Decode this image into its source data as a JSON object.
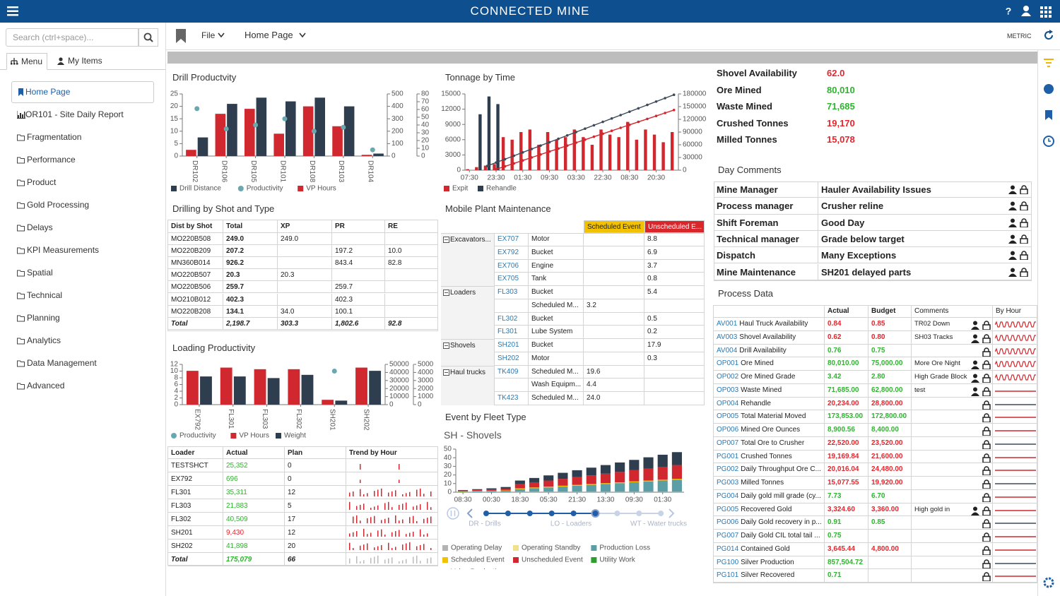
{
  "header": {
    "title": "CONNECTED MINE"
  },
  "toolbar": {
    "file_menu": "File",
    "page_menu": "Home Page",
    "units": "METRIC"
  },
  "sidebar": {
    "search_placeholder": "Search (ctrl+space)...",
    "tabs": [
      "Menu",
      "My Items"
    ],
    "items": [
      "Home Page",
      "OR101 - Site Daily Report",
      "Fragmentation",
      "Performance",
      "Product",
      "Gold Processing",
      "Delays",
      "KPI Measurements",
      "Spatial",
      "Technical",
      "Planning",
      "Analytics",
      "Data Management",
      "Advanced"
    ]
  },
  "drill_productivity": {
    "title": "Drill Productvity",
    "chart": {
      "type": "bar",
      "categories": [
        "DR102",
        "DR106",
        "DR105",
        "DR101",
        "DR108",
        "DR103",
        "DR104"
      ],
      "series": [
        {
          "name": "Drill Distance",
          "type": "bar",
          "color": "#2f3e4e",
          "axis": "y2",
          "values": [
            150,
            420,
            470,
            440,
            470,
            400,
            20
          ]
        },
        {
          "name": "Productivity",
          "type": "scatter",
          "color": "#6aa8b0",
          "axis": "y3",
          "values": [
            61,
            35,
            40,
            48,
            32,
            37,
            8
          ]
        },
        {
          "name": "VP Hours",
          "type": "bar",
          "color": "#d0282e",
          "values": [
            2.5,
            17,
            19,
            9,
            20,
            12,
            0.5
          ]
        }
      ],
      "ylim": [
        0,
        25
      ],
      "yticks": [
        0,
        5,
        10,
        15,
        20,
        25
      ],
      "y2lim": [
        0,
        500
      ],
      "y2ticks": [
        0,
        100,
        200,
        300,
        400,
        500
      ],
      "y3lim": [
        0,
        80
      ],
      "y3ticks": [
        0,
        10,
        20,
        30,
        40,
        50,
        60,
        70,
        80
      ]
    }
  },
  "drilling_by_shot": {
    "title": "Drilling by Shot and Type",
    "columns": [
      "Dist by Shot",
      "Total",
      "XP",
      "PR",
      "RE"
    ],
    "rows": [
      [
        "MO220B508",
        "249.0",
        "249.0",
        null,
        null
      ],
      [
        "MO220B209",
        "207.2",
        null,
        "197.2",
        "10.0"
      ],
      [
        "MN360B014",
        "926.2",
        null,
        "843.4",
        "82.8"
      ],
      [
        "MO220B507",
        "20.3",
        "20.3",
        null,
        null
      ],
      [
        "MO220B506",
        "259.7",
        null,
        "259.7",
        null
      ],
      [
        "MO210B012",
        "402.3",
        null,
        "402.3",
        null
      ],
      [
        "MO220B208",
        "134.1",
        "34.0",
        "100.1",
        null
      ],
      [
        "Total",
        "2,198.7",
        "303.3",
        "1,802.6",
        "92.8"
      ]
    ]
  },
  "loading_productivity": {
    "title": "Loading Productivity",
    "chart": {
      "type": "bar",
      "categories": [
        "EX792",
        "FL301",
        "FL303",
        "FL302",
        "SH201",
        "SH202"
      ],
      "series": [
        {
          "name": "Productivity",
          "type": "scatter",
          "color": "#6aa8b0",
          "values": [
            null,
            null,
            null,
            null,
            10,
            null
          ]
        },
        {
          "name": "VP Hours",
          "type": "bar",
          "color": "#d0282e",
          "axis": "y3",
          "values": [
            4200,
            4600,
            4400,
            4400,
            600,
            4600
          ]
        },
        {
          "name": "Weight",
          "type": "bar",
          "color": "#2f3e4e",
          "axis": "y2",
          "values": [
            35000,
            35000,
            33000,
            37000,
            5000,
            42000
          ]
        }
      ],
      "ylim": [
        0,
        12
      ],
      "yticks": [
        0,
        2,
        4,
        6,
        8,
        10,
        12
      ],
      "y2lim": [
        0,
        50000
      ],
      "y2ticks": [
        0,
        10000,
        20000,
        30000,
        40000,
        50000
      ],
      "y3lim": [
        0,
        5000
      ],
      "y3ticks": [
        0,
        1000,
        2000,
        3000,
        4000,
        5000
      ]
    }
  },
  "loading_table": {
    "columns": [
      "Loader",
      "Actual",
      "Plan",
      "Trend by Hour"
    ],
    "rows": [
      {
        "loader": "TESTSHCT",
        "actual": "25,352",
        "plan": 0,
        "status": "good"
      },
      {
        "loader": "EX792",
        "actual": "696",
        "plan": 0,
        "status": "good"
      },
      {
        "loader": "FL301",
        "actual": "35,311",
        "plan": 12,
        "status": "good"
      },
      {
        "loader": "FL303",
        "actual": "21,883",
        "plan": 5,
        "status": "good"
      },
      {
        "loader": "FL302",
        "actual": "40,509",
        "plan": 17,
        "status": "good"
      },
      {
        "loader": "SH201",
        "actual": "9,430",
        "plan": 12,
        "status": "bad"
      },
      {
        "loader": "SH202",
        "actual": "41,898",
        "plan": 20,
        "status": "good"
      },
      {
        "loader": "Total",
        "actual": "175,079",
        "plan": 66,
        "status": "good"
      }
    ]
  },
  "tonnage_by_time": {
    "title": "Tonnage by Time",
    "chart": {
      "type": "bar",
      "categories": [
        "07:30",
        null,
        null,
        "23:30",
        null,
        null,
        "01:30",
        null,
        null,
        "09:30",
        null,
        null,
        "03:30",
        null,
        null,
        "22:30",
        null,
        null,
        "08:30",
        null,
        null,
        "20:30",
        null,
        null
      ],
      "series": [
        {
          "name": "Expit",
          "type": "bar",
          "color": "#d0282e",
          "values": [
            200,
            600,
            900,
            1200,
            6500,
            6000,
            7500,
            8000,
            5000,
            7500,
            6000,
            6500,
            8000,
            6500,
            5000,
            8000,
            7000,
            6500,
            9500,
            6000,
            8000,
            7000,
            5500,
            7500
          ]
        },
        {
          "name": "Rehandle",
          "type": "bar",
          "color": "#2f3e4e",
          "values": [
            0,
            11000,
            14500,
            13000,
            0,
            0,
            0,
            0,
            0,
            0,
            0,
            0,
            0,
            0,
            0,
            0,
            0,
            0,
            0,
            0,
            0,
            0,
            0,
            0
          ]
        },
        {
          "type": "line",
          "color": "#3c4a5a",
          "axis": "y2",
          "values": [
            null,
            null,
            10000,
            18000,
            26000,
            34000,
            42000,
            50000,
            58000,
            66000,
            74000,
            82000,
            90000,
            98000,
            106000,
            114000,
            122000,
            130000,
            138000,
            146000,
            154000,
            162000,
            170000,
            178000
          ]
        },
        {
          "type": "line",
          "color": "#d0282e",
          "axis": "y2",
          "values": [
            null,
            null,
            null,
            2000,
            9000,
            16000,
            23000,
            30000,
            37000,
            44000,
            51000,
            58000,
            65000,
            72000,
            79000,
            86000,
            93000,
            100000,
            107000,
            114000,
            121000,
            128000,
            135000,
            142000
          ]
        }
      ],
      "ylim": [
        0,
        15000
      ],
      "yticks": [
        0,
        3000,
        6000,
        9000,
        12000,
        15000
      ],
      "y2lim": [
        0,
        180000
      ],
      "y2ticks": [
        0,
        30000,
        60000,
        90000,
        120000,
        150000,
        180000
      ]
    }
  },
  "plant_maintenance": {
    "title": "Mobile Plant Maintenance",
    "columns": [
      null,
      null,
      null,
      "Scheduled Event",
      "Unscheduled E..."
    ],
    "rows": [
      [
        "Excavators...",
        "EX707",
        "Motor",
        null,
        "8.8"
      ],
      [
        null,
        "EX792",
        "Bucket",
        null,
        "6.9"
      ],
      [
        null,
        "EX706",
        "Engine",
        null,
        "3.7"
      ],
      [
        null,
        "EX705",
        "Tank",
        null,
        "0.8"
      ],
      [
        "Loaders",
        "FL303",
        "Bucket",
        null,
        "5.4"
      ],
      [
        null,
        null,
        "Scheduled M...",
        "3.2",
        null
      ],
      [
        null,
        "FL302",
        "Bucket",
        null,
        "0.5"
      ],
      [
        null,
        "FL301",
        "Lube System",
        null,
        "0.2"
      ],
      [
        "Shovels",
        "SH201",
        "Bucket",
        null,
        "17.9"
      ],
      [
        null,
        "SH202",
        "Motor",
        null,
        "0.3"
      ],
      [
        "Haul trucks",
        "TK409",
        "Scheduled M...",
        "19.6",
        null
      ],
      [
        null,
        null,
        "Wash Equipm...",
        "4.4",
        null
      ],
      [
        null,
        "TK423",
        "Scheduled M...",
        "24.0",
        null
      ]
    ]
  },
  "event_by_fleet": {
    "title": "Event by Fleet Type",
    "subtitle": "SH - Shovels",
    "fleets": [
      "DR - Drills",
      "LO - Loaders",
      "WT - Water trucks"
    ],
    "chart": {
      "type": "bar",
      "stacked": true,
      "categories": [
        "08:30",
        null,
        "00:30",
        null,
        "18:30",
        null,
        "05:30",
        null,
        "21:30",
        null,
        "13:30",
        null,
        "09:30",
        null,
        "01:30",
        null
      ],
      "series": [
        {
          "name": "Operating Delay",
          "type": "bar",
          "color": "#b3b3b3",
          "values": [
            0,
            0,
            0,
            0,
            0.5,
            0.5,
            0.5,
            0.5,
            0.5,
            0.5,
            0.5,
            0.5,
            0.5,
            0.5,
            0.5,
            0.5
          ]
        },
        {
          "name": "Operating Standby",
          "type": "bar",
          "color": "#efe08a",
          "values": [
            0,
            0,
            0,
            0,
            0,
            0,
            0,
            0,
            0,
            0,
            0,
            0,
            0,
            0,
            0,
            0
          ]
        },
        {
          "name": "Production Loss",
          "type": "bar",
          "color": "#5b9ea6",
          "values": [
            0.5,
            1,
            1,
            1.5,
            3,
            4,
            5,
            6,
            7,
            8,
            9,
            10,
            11,
            12,
            13,
            14
          ]
        },
        {
          "name": "Scheduled Event",
          "type": "bar",
          "color": "#f2c200",
          "values": [
            0.5,
            0.5,
            0.5,
            0.5,
            1,
            1,
            1,
            1,
            1,
            1,
            1,
            1,
            1,
            1,
            1,
            1
          ]
        },
        {
          "name": "Unscheduled Event",
          "type": "bar",
          "color": "#d0282e",
          "values": [
            1,
            1,
            1.5,
            2,
            5,
            6,
            7,
            8,
            9,
            10,
            11,
            12,
            13,
            14,
            15,
            16
          ]
        },
        {
          "name": "Utility Work",
          "type": "bar",
          "color": "#2e9e2e",
          "values": [
            0,
            0,
            0,
            0,
            0,
            0,
            0,
            0,
            0,
            0,
            0,
            0,
            0,
            0,
            0,
            0
          ]
        },
        {
          "name": "Value Productive",
          "type": "bar",
          "color": "#2f3e4e",
          "values": [
            0.5,
            1,
            1.5,
            2,
            4,
            5,
            6,
            7,
            8,
            9,
            10,
            11,
            12,
            13,
            14,
            15
          ]
        }
      ],
      "ylim": [
        0,
        50
      ],
      "yticks": [
        0,
        10,
        20,
        30,
        40,
        50
      ]
    }
  },
  "kpis": [
    {
      "label": "Shovel Availability",
      "value": "62.0",
      "status": "bad"
    },
    {
      "label": "Ore Mined",
      "value": "80,010",
      "status": "good"
    },
    {
      "label": "Waste Mined",
      "value": "71,685",
      "status": "good"
    },
    {
      "label": "Crushed Tonnes",
      "value": "19,170",
      "status": "bad"
    },
    {
      "label": "Milled Tonnes",
      "value": "15,078",
      "status": "bad"
    }
  ],
  "day_comments": {
    "title": "Day Comments",
    "rows": [
      {
        "role": "Mine Manager",
        "comment": "Hauler Availability Issues"
      },
      {
        "role": "Process manager",
        "comment": "Crusher reline"
      },
      {
        "role": "Shift Foreman",
        "comment": "Good Day"
      },
      {
        "role": "Technical manager",
        "comment": "Grade below target"
      },
      {
        "role": "Dispatch",
        "comment": "Many Exceptions"
      },
      {
        "role": "Mine Maintenance",
        "comment": "SH201 delayed parts"
      }
    ]
  },
  "process_data": {
    "title": "Process Data",
    "columns": [
      null,
      "Actual",
      "Budget",
      "Comments",
      "By Hour"
    ],
    "rows": [
      {
        "code": "AV001",
        "name": "Haul Truck Availability",
        "actual": "0.84",
        "budget": "0.85",
        "comment": "TR02 Down",
        "status": "bad"
      },
      {
        "code": "AV003",
        "name": "Shovel Availability",
        "actual": "0.62",
        "budget": "0.80",
        "comment": "SH03 Tracks",
        "status": "bad"
      },
      {
        "code": "AV004",
        "name": "Drill Availability",
        "actual": "0.76",
        "budget": "0.75",
        "comment": null,
        "status": "good"
      },
      {
        "code": "OP001",
        "name": "Ore Mined",
        "actual": "80,010.00",
        "budget": "75,000.00",
        "comment": "More Ore Night",
        "status": "good"
      },
      {
        "code": "OP002",
        "name": "Ore Mined Grade",
        "actual": "3.42",
        "budget": "2.80",
        "comment": "High Grade Block",
        "status": "good"
      },
      {
        "code": "OP003",
        "name": "Waste Mined",
        "actual": "71,685.00",
        "budget": "62,800.00",
        "comment": "test",
        "status": "good"
      },
      {
        "code": "OP004",
        "name": "Rehandle",
        "actual": "20,234.00",
        "budget": "28,800.00",
        "comment": null,
        "status": "bad"
      },
      {
        "code": "OP005",
        "name": "Total Material Moved",
        "actual": "173,853.00",
        "budget": "172,800.00",
        "comment": null,
        "status": "good"
      },
      {
        "code": "OP006",
        "name": "Mined Ore Ounces",
        "actual": "8,900.56",
        "budget": "8,400.00",
        "comment": null,
        "status": "good"
      },
      {
        "code": "OP007",
        "name": "Total Ore to Crusher",
        "actual": "22,520.00",
        "budget": "23,520.00",
        "comment": null,
        "status": "bad"
      },
      {
        "code": "PG001",
        "name": "Crushed Tonnes",
        "actual": "19,169.84",
        "budget": "21,600.00",
        "comment": null,
        "status": "bad"
      },
      {
        "code": "PG002",
        "name": "Daily Throughput Ore C...",
        "actual": "20,016.04",
        "budget": "24,480.00",
        "comment": null,
        "status": "bad"
      },
      {
        "code": "PG003",
        "name": "Milled Tonnes",
        "actual": "15,077.55",
        "budget": "19,920.00",
        "comment": null,
        "status": "bad"
      },
      {
        "code": "PG004",
        "name": "Daily gold mill grade (cy...",
        "actual": "7.73",
        "budget": "6.70",
        "comment": null,
        "status": "good"
      },
      {
        "code": "PG005",
        "name": "Recovered Gold",
        "actual": "3,324.60",
        "budget": "3,360.00",
        "comment": "High gold in",
        "status": "bad"
      },
      {
        "code": "PG006",
        "name": "Daily Gold recovery in p...",
        "actual": "0.91",
        "budget": "0.85",
        "comment": null,
        "status": "good"
      },
      {
        "code": "PG007",
        "name": "Daily Gold CIL total tail ...",
        "actual": "0.75",
        "budget": null,
        "comment": null,
        "status": "good"
      },
      {
        "code": "PG014",
        "name": "Contained Gold",
        "actual": "3,645.44",
        "budget": "4,800.00",
        "comment": null,
        "status": "bad"
      },
      {
        "code": "PG100",
        "name": "Silver Production",
        "actual": "857,504.72",
        "budget": null,
        "comment": null,
        "status": "good"
      },
      {
        "code": "PG101",
        "name": "Silver Recovered",
        "actual": "0.71",
        "budget": null,
        "comment": null,
        "status": "good"
      }
    ]
  }
}
